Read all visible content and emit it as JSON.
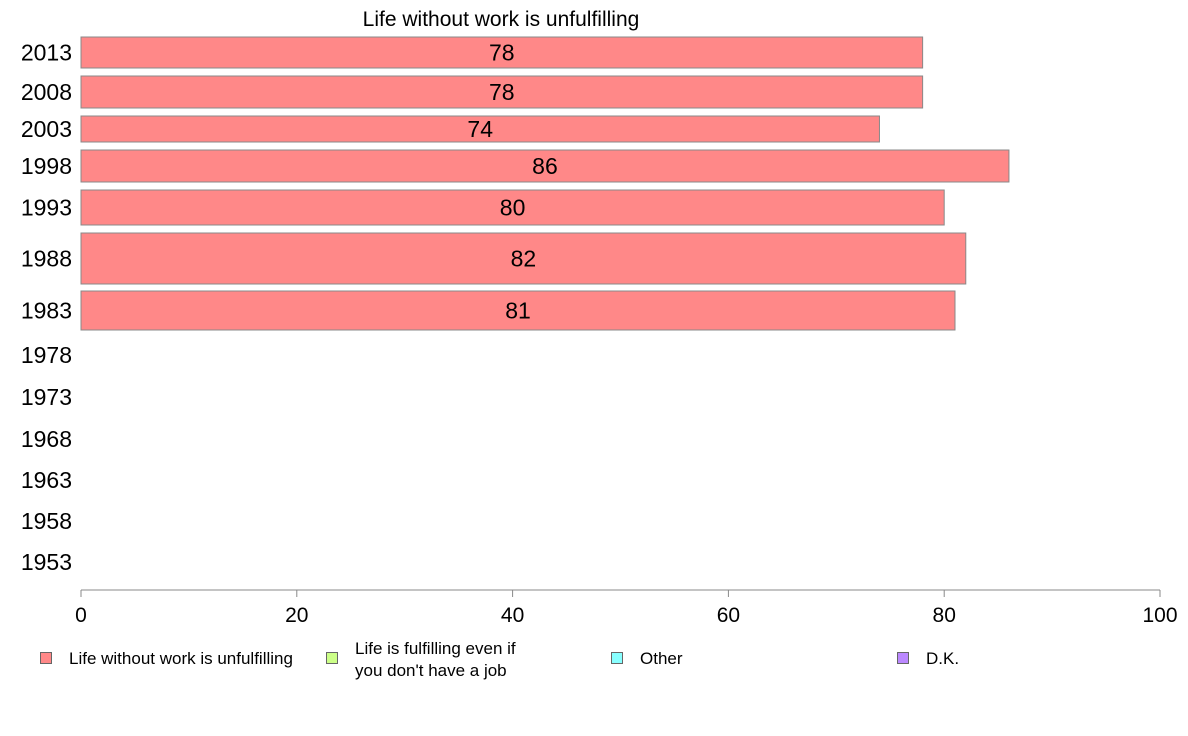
{
  "chart_data": {
    "type": "bar",
    "orientation": "horizontal",
    "title": "Life without work is unfulfilling",
    "categories": [
      "2013",
      "2008",
      "2003",
      "1998",
      "1993",
      "1988",
      "1983",
      "1978",
      "1973",
      "1968",
      "1963",
      "1958",
      "1953"
    ],
    "series": [
      {
        "name": "Life without work is unfulfilling",
        "color": "#ff8888",
        "values": [
          78,
          78,
          74,
          86,
          80,
          82,
          81,
          null,
          null,
          null,
          null,
          null,
          null
        ],
        "labels": [
          "78",
          "78",
          "74",
          "86",
          "80",
          "82",
          "81",
          "",
          "",
          "",
          "",
          "",
          ""
        ]
      }
    ],
    "xlim": [
      0,
      100
    ],
    "xticks": [
      "0",
      "20",
      "40",
      "60",
      "80",
      "100"
    ],
    "grid": false,
    "legend_position": "bottom"
  },
  "legend": [
    {
      "label": "Life without work is unfulfilling",
      "color": "#ff8888"
    },
    {
      "label": "Life is fulfilling even if\nyou don't have a job",
      "color": "#ccff88"
    },
    {
      "label": "Other",
      "color": "#88ffff"
    },
    {
      "label": "D.K.",
      "color": "#bb88ff"
    }
  ]
}
